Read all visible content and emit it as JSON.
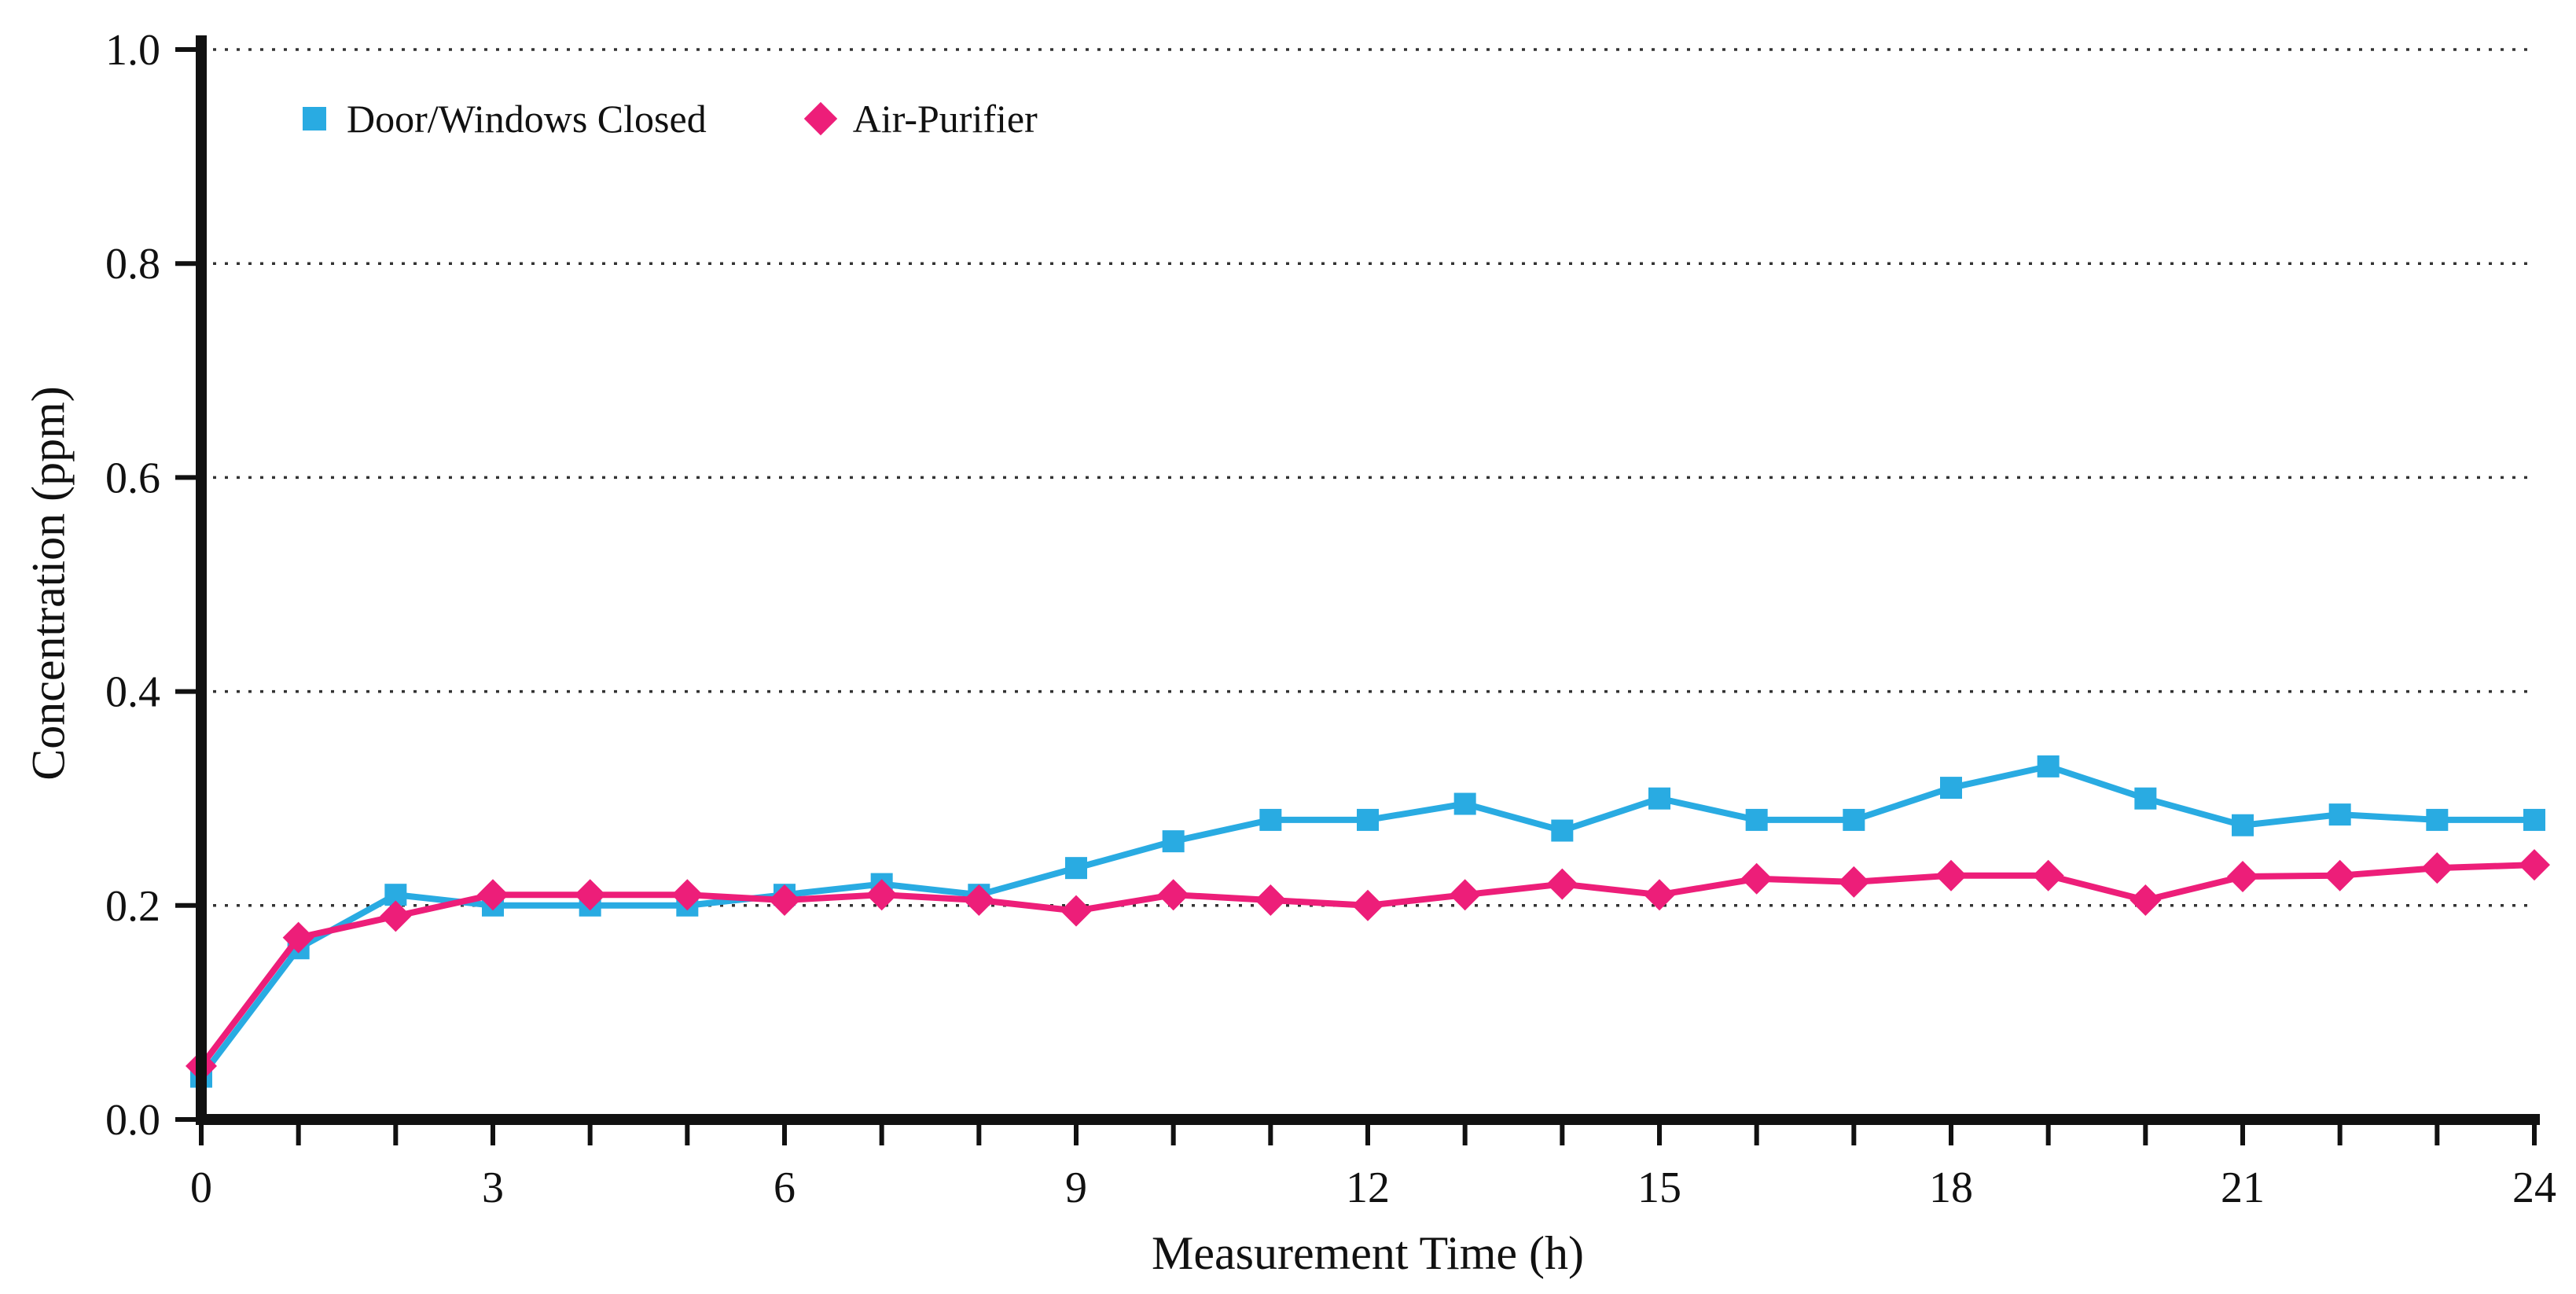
{
  "chart_data": {
    "type": "line",
    "title": "",
    "xlabel": "Measurement Time (h)",
    "ylabel": "Concentration (ppm)",
    "xlim": [
      0,
      24
    ],
    "ylim": [
      0.0,
      1.0
    ],
    "xticks": [
      0,
      3,
      6,
      9,
      12,
      15,
      18,
      21,
      24
    ],
    "yticks": [
      0.0,
      0.2,
      0.4,
      0.6,
      0.8,
      1.0
    ],
    "grid": "dotted-horizontal",
    "legend_position": "top-left-inside",
    "x": [
      0,
      1,
      2,
      3,
      4,
      5,
      6,
      7,
      8,
      9,
      10,
      11,
      12,
      13,
      14,
      15,
      16,
      17,
      18,
      19,
      20,
      21,
      22,
      23,
      24
    ],
    "series": [
      {
        "name": "Door/Windows Closed",
        "color": "#29ABE2",
        "marker": "square",
        "values": [
          0.04,
          0.16,
          0.21,
          0.2,
          0.2,
          0.2,
          0.21,
          0.22,
          0.21,
          0.235,
          0.26,
          0.28,
          0.28,
          0.295,
          0.27,
          0.3,
          0.28,
          0.28,
          0.31,
          0.33,
          0.3,
          0.275,
          0.285,
          0.28,
          0.28
        ]
      },
      {
        "name": "Air-Purifier",
        "color": "#ED1E79",
        "marker": "diamond",
        "values": [
          0.05,
          0.17,
          0.19,
          0.21,
          0.21,
          0.21,
          0.205,
          0.21,
          0.205,
          0.195,
          0.21,
          0.205,
          0.2,
          0.21,
          0.22,
          0.21,
          0.225,
          0.222,
          0.228,
          0.228,
          0.205,
          0.227,
          0.228,
          0.235,
          0.238
        ]
      }
    ],
    "axis_color": "#111111",
    "grid_color": "#333333"
  }
}
